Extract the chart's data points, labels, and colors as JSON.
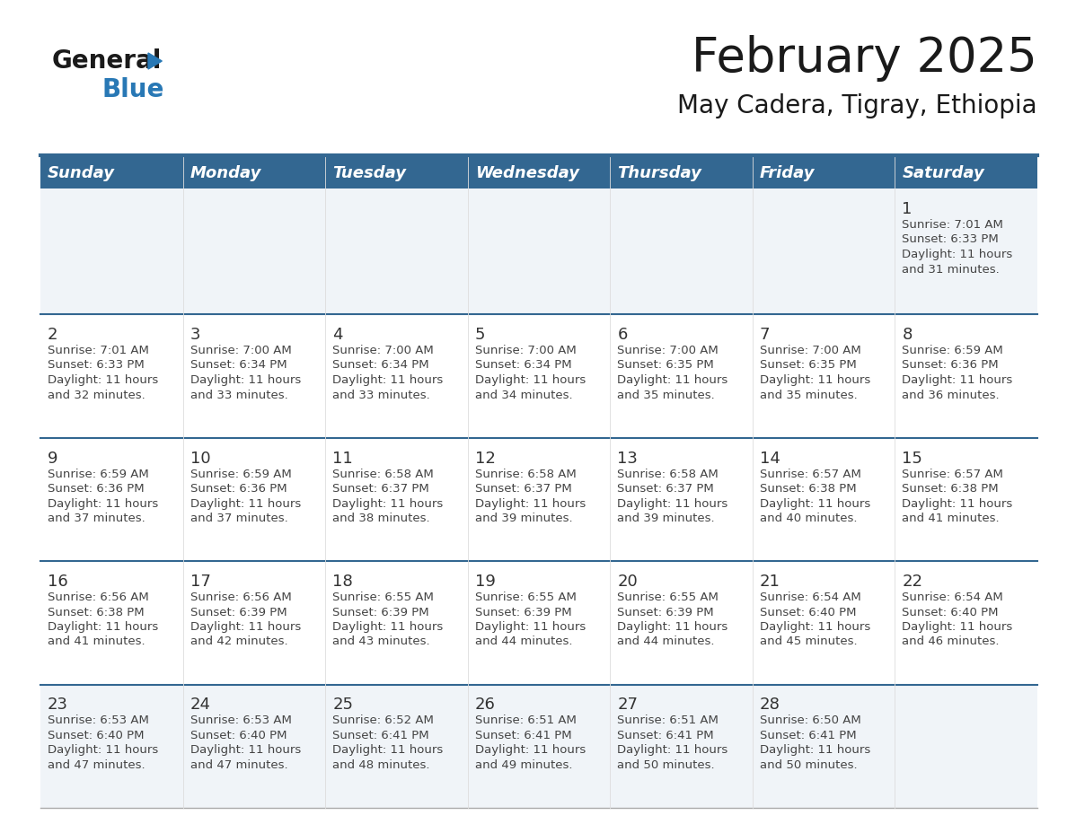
{
  "title": "February 2025",
  "subtitle": "May Cadera, Tigray, Ethiopia",
  "days_of_week": [
    "Sunday",
    "Monday",
    "Tuesday",
    "Wednesday",
    "Thursday",
    "Friday",
    "Saturday"
  ],
  "header_bg": "#336791",
  "header_text": "#ffffff",
  "separator_color": "#336791",
  "title_color": "#1a1a1a",
  "subtitle_color": "#1a1a1a",
  "day_number_color": "#333333",
  "cell_text_color": "#444444",
  "background_color": "#ffffff",
  "row_bg_alt": "#f0f4f8",
  "logo_black": "#1a1a1a",
  "logo_blue": "#2878b5",
  "logo_triangle": "#2878b5",
  "calendar_data": [
    [
      null,
      null,
      null,
      null,
      null,
      null,
      {
        "day": 1,
        "sunrise": "7:01 AM",
        "sunset": "6:33 PM",
        "daylight": "11 hours",
        "daylight2": "and 31 minutes."
      }
    ],
    [
      {
        "day": 2,
        "sunrise": "7:01 AM",
        "sunset": "6:33 PM",
        "daylight": "11 hours",
        "daylight2": "and 32 minutes."
      },
      {
        "day": 3,
        "sunrise": "7:00 AM",
        "sunset": "6:34 PM",
        "daylight": "11 hours",
        "daylight2": "and 33 minutes."
      },
      {
        "day": 4,
        "sunrise": "7:00 AM",
        "sunset": "6:34 PM",
        "daylight": "11 hours",
        "daylight2": "and 33 minutes."
      },
      {
        "day": 5,
        "sunrise": "7:00 AM",
        "sunset": "6:34 PM",
        "daylight": "11 hours",
        "daylight2": "and 34 minutes."
      },
      {
        "day": 6,
        "sunrise": "7:00 AM",
        "sunset": "6:35 PM",
        "daylight": "11 hours",
        "daylight2": "and 35 minutes."
      },
      {
        "day": 7,
        "sunrise": "7:00 AM",
        "sunset": "6:35 PM",
        "daylight": "11 hours",
        "daylight2": "and 35 minutes."
      },
      {
        "day": 8,
        "sunrise": "6:59 AM",
        "sunset": "6:36 PM",
        "daylight": "11 hours",
        "daylight2": "and 36 minutes."
      }
    ],
    [
      {
        "day": 9,
        "sunrise": "6:59 AM",
        "sunset": "6:36 PM",
        "daylight": "11 hours",
        "daylight2": "and 37 minutes."
      },
      {
        "day": 10,
        "sunrise": "6:59 AM",
        "sunset": "6:36 PM",
        "daylight": "11 hours",
        "daylight2": "and 37 minutes."
      },
      {
        "day": 11,
        "sunrise": "6:58 AM",
        "sunset": "6:37 PM",
        "daylight": "11 hours",
        "daylight2": "and 38 minutes."
      },
      {
        "day": 12,
        "sunrise": "6:58 AM",
        "sunset": "6:37 PM",
        "daylight": "11 hours",
        "daylight2": "and 39 minutes."
      },
      {
        "day": 13,
        "sunrise": "6:58 AM",
        "sunset": "6:37 PM",
        "daylight": "11 hours",
        "daylight2": "and 39 minutes."
      },
      {
        "day": 14,
        "sunrise": "6:57 AM",
        "sunset": "6:38 PM",
        "daylight": "11 hours",
        "daylight2": "and 40 minutes."
      },
      {
        "day": 15,
        "sunrise": "6:57 AM",
        "sunset": "6:38 PM",
        "daylight": "11 hours",
        "daylight2": "and 41 minutes."
      }
    ],
    [
      {
        "day": 16,
        "sunrise": "6:56 AM",
        "sunset": "6:38 PM",
        "daylight": "11 hours",
        "daylight2": "and 41 minutes."
      },
      {
        "day": 17,
        "sunrise": "6:56 AM",
        "sunset": "6:39 PM",
        "daylight": "11 hours",
        "daylight2": "and 42 minutes."
      },
      {
        "day": 18,
        "sunrise": "6:55 AM",
        "sunset": "6:39 PM",
        "daylight": "11 hours",
        "daylight2": "and 43 minutes."
      },
      {
        "day": 19,
        "sunrise": "6:55 AM",
        "sunset": "6:39 PM",
        "daylight": "11 hours",
        "daylight2": "and 44 minutes."
      },
      {
        "day": 20,
        "sunrise": "6:55 AM",
        "sunset": "6:39 PM",
        "daylight": "11 hours",
        "daylight2": "and 44 minutes."
      },
      {
        "day": 21,
        "sunrise": "6:54 AM",
        "sunset": "6:40 PM",
        "daylight": "11 hours",
        "daylight2": "and 45 minutes."
      },
      {
        "day": 22,
        "sunrise": "6:54 AM",
        "sunset": "6:40 PM",
        "daylight": "11 hours",
        "daylight2": "and 46 minutes."
      }
    ],
    [
      {
        "day": 23,
        "sunrise": "6:53 AM",
        "sunset": "6:40 PM",
        "daylight": "11 hours",
        "daylight2": "and 47 minutes."
      },
      {
        "day": 24,
        "sunrise": "6:53 AM",
        "sunset": "6:40 PM",
        "daylight": "11 hours",
        "daylight2": "and 47 minutes."
      },
      {
        "day": 25,
        "sunrise": "6:52 AM",
        "sunset": "6:41 PM",
        "daylight": "11 hours",
        "daylight2": "and 48 minutes."
      },
      {
        "day": 26,
        "sunrise": "6:51 AM",
        "sunset": "6:41 PM",
        "daylight": "11 hours",
        "daylight2": "and 49 minutes."
      },
      {
        "day": 27,
        "sunrise": "6:51 AM",
        "sunset": "6:41 PM",
        "daylight": "11 hours",
        "daylight2": "and 50 minutes."
      },
      {
        "day": 28,
        "sunrise": "6:50 AM",
        "sunset": "6:41 PM",
        "daylight": "11 hours",
        "daylight2": "and 50 minutes."
      },
      null
    ]
  ]
}
